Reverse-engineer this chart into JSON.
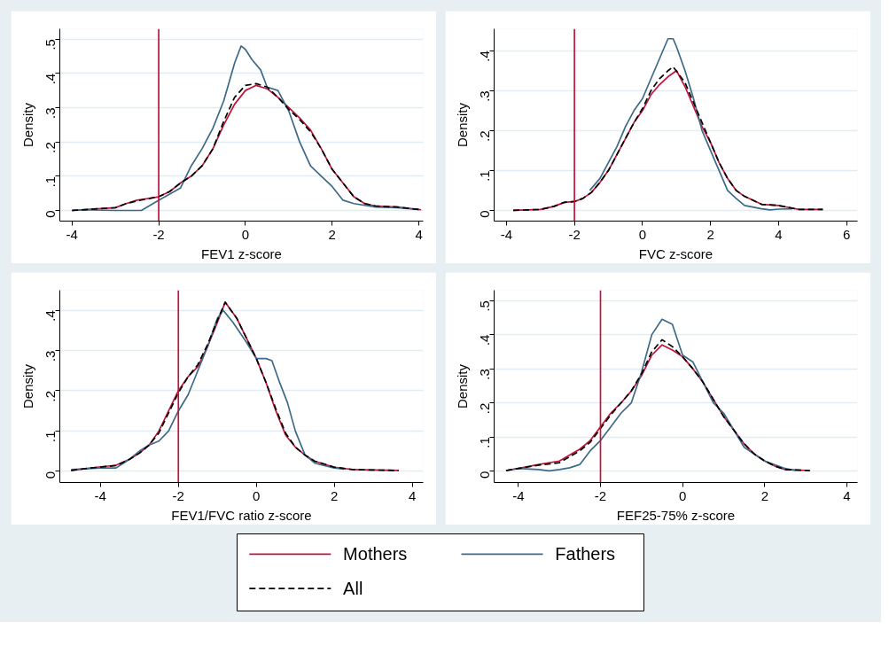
{
  "chart_data": [
    {
      "type": "line",
      "xlabel": "FEV1 z-score",
      "ylabel": "Density",
      "xlim": [
        -4.28,
        4.1
      ],
      "ylim": [
        -0.031,
        0.53
      ],
      "xticks": [
        -4,
        -2,
        0,
        2,
        4
      ],
      "yticks": [
        0,
        {
          "value": 0.1,
          "label": ".1"
        },
        {
          "value": 0.2,
          "label": ".2"
        },
        {
          "value": 0.3,
          "label": ".3"
        },
        {
          "value": 0.4,
          "label": ".4"
        },
        {
          "value": 0.5,
          "label": ".5"
        }
      ],
      "grid": "y",
      "ref_lines": [
        {
          "axis": "x",
          "value": -2,
          "color": "#c0143c"
        }
      ],
      "series": [
        {
          "color": "#c0143c",
          "line_style": "solid",
          "x": [
            -4,
            -3.5,
            -3,
            -2.75,
            -2.5,
            -2.25,
            -2,
            -1.75,
            -1.5,
            -1.25,
            -1,
            -0.75,
            -0.5,
            -0.25,
            0,
            0.25,
            0.5,
            0.75,
            1,
            1.25,
            1.5,
            1.75,
            2,
            2.25,
            2.5,
            2.75,
            3,
            3.5,
            4.05
          ],
          "values": [
            0.0,
            0.004,
            0.008,
            0.02,
            0.03,
            0.035,
            0.04,
            0.055,
            0.08,
            0.1,
            0.13,
            0.18,
            0.25,
            0.31,
            0.35,
            0.365,
            0.355,
            0.33,
            0.3,
            0.27,
            0.235,
            0.18,
            0.12,
            0.08,
            0.04,
            0.02,
            0.013,
            0.01,
            0.002
          ]
        },
        {
          "color": "#3e6a8a",
          "line_style": "solid",
          "x": [
            -4,
            -3.8,
            -3,
            -2.4,
            -2,
            -1.5,
            -1.25,
            -1,
            -0.75,
            -0.5,
            -0.25,
            -0.1,
            0,
            0.15,
            0.35,
            0.5,
            0.75,
            1,
            1.25,
            1.5,
            1.75,
            2,
            2.25,
            2.5,
            3,
            3.5,
            4
          ],
          "values": [
            0.0,
            0.002,
            0.0,
            0.0,
            0.03,
            0.065,
            0.13,
            0.18,
            0.24,
            0.32,
            0.43,
            0.48,
            0.47,
            0.44,
            0.41,
            0.36,
            0.35,
            0.29,
            0.2,
            0.13,
            0.1,
            0.07,
            0.03,
            0.02,
            0.01,
            0.008,
            0.003
          ]
        },
        {
          "color": "#000000",
          "line_style": "dashed",
          "x": [
            -4,
            -3.5,
            -3,
            -2.75,
            -2.5,
            -2.25,
            -2,
            -1.75,
            -1.5,
            -1.25,
            -1,
            -0.75,
            -0.5,
            -0.25,
            0,
            0.25,
            0.5,
            0.75,
            1,
            1.25,
            1.5,
            1.75,
            2,
            2.25,
            2.5,
            2.75,
            3,
            3.5,
            4.05
          ],
          "values": [
            0.0,
            0.004,
            0.008,
            0.02,
            0.028,
            0.034,
            0.04,
            0.055,
            0.08,
            0.1,
            0.13,
            0.18,
            0.26,
            0.33,
            0.365,
            0.37,
            0.36,
            0.33,
            0.295,
            0.265,
            0.23,
            0.18,
            0.12,
            0.08,
            0.04,
            0.02,
            0.013,
            0.01,
            0.002
          ]
        }
      ]
    },
    {
      "type": "line",
      "xlabel": "FVC z-score",
      "ylabel": "Density",
      "xlim": [
        -4.36,
        6.32
      ],
      "ylim": [
        -0.027,
        0.455
      ],
      "xticks": [
        -4,
        -2,
        0,
        2,
        4,
        6
      ],
      "yticks": [
        0,
        {
          "value": 0.1,
          "label": ".1"
        },
        {
          "value": 0.2,
          "label": ".2"
        },
        {
          "value": 0.3,
          "label": ".3"
        },
        {
          "value": 0.4,
          "label": ".4"
        }
      ],
      "grid": "y",
      "ref_lines": [
        {
          "axis": "x",
          "value": -2,
          "color": "#c0143c"
        }
      ],
      "series": [
        {
          "color": "#c0143c",
          "line_style": "solid",
          "x": [
            -3.8,
            -3,
            -2.6,
            -2.3,
            -2,
            -1.75,
            -1.5,
            -1.25,
            -1,
            -0.75,
            -0.5,
            -0.25,
            0,
            0.25,
            0.5,
            0.75,
            1,
            1.25,
            1.5,
            1.75,
            2,
            2.25,
            2.5,
            2.75,
            3,
            3.25,
            3.5,
            4,
            4.25,
            4.6,
            5.3
          ],
          "values": [
            0.0,
            0.002,
            0.01,
            0.02,
            0.022,
            0.03,
            0.045,
            0.07,
            0.1,
            0.14,
            0.18,
            0.22,
            0.25,
            0.29,
            0.315,
            0.335,
            0.35,
            0.31,
            0.26,
            0.21,
            0.17,
            0.12,
            0.08,
            0.05,
            0.035,
            0.025,
            0.015,
            0.012,
            0.008,
            0.002,
            0.002
          ]
        },
        {
          "color": "#3e6a8a",
          "line_style": "solid",
          "x": [
            -1.55,
            -1.25,
            -1,
            -0.75,
            -0.5,
            -0.25,
            0,
            0.25,
            0.5,
            0.75,
            0.9,
            1,
            1.25,
            1.5,
            1.75,
            2,
            2.25,
            2.5,
            2.75,
            3,
            3.5,
            3.75,
            4,
            4.4
          ],
          "values": [
            0.05,
            0.08,
            0.12,
            0.16,
            0.21,
            0.25,
            0.28,
            0.33,
            0.38,
            0.43,
            0.43,
            0.41,
            0.35,
            0.28,
            0.2,
            0.15,
            0.1,
            0.05,
            0.03,
            0.012,
            0.004,
            0.001,
            0.003,
            0.004
          ]
        },
        {
          "color": "#000000",
          "line_style": "dashed",
          "x": [
            -3.8,
            -3,
            -2.6,
            -2.3,
            -2,
            -1.75,
            -1.5,
            -1.25,
            -1,
            -0.75,
            -0.5,
            -0.25,
            0,
            0.25,
            0.5,
            0.75,
            0.9,
            1.25,
            1.5,
            1.75,
            2,
            2.25,
            2.5,
            2.75,
            3,
            3.25,
            3.5,
            4,
            4.25,
            4.6,
            5.3
          ],
          "values": [
            0.0,
            0.002,
            0.01,
            0.02,
            0.022,
            0.03,
            0.045,
            0.07,
            0.1,
            0.14,
            0.18,
            0.22,
            0.255,
            0.3,
            0.33,
            0.35,
            0.36,
            0.32,
            0.27,
            0.22,
            0.17,
            0.12,
            0.08,
            0.05,
            0.035,
            0.025,
            0.015,
            0.012,
            0.008,
            0.002,
            0.002
          ]
        }
      ]
    },
    {
      "type": "line",
      "xlabel": "FEV1/FVC ratio z-score",
      "ylabel": "Density",
      "xlim": [
        -5.04,
        4.28
      ],
      "ylim": [
        -0.028,
        0.45
      ],
      "xticks": [
        -4,
        -2,
        0,
        2,
        4
      ],
      "yticks": [
        0,
        {
          "value": 0.1,
          "label": ".1"
        },
        {
          "value": 0.2,
          "label": ".2"
        },
        {
          "value": 0.3,
          "label": ".3"
        },
        {
          "value": 0.4,
          "label": ".4"
        }
      ],
      "grid": "y",
      "ref_lines": [
        {
          "axis": "x",
          "value": -2,
          "color": "#c0143c"
        }
      ],
      "series": [
        {
          "color": "#c0143c",
          "line_style": "solid",
          "x": [
            -4.75,
            -4.25,
            -3.6,
            -3.25,
            -3,
            -2.75,
            -2.5,
            -2.25,
            -2,
            -1.75,
            -1.5,
            -1.25,
            -1,
            -0.8,
            -0.5,
            -0.25,
            0,
            0.25,
            0.5,
            0.75,
            1,
            1.25,
            1.5,
            2,
            2.5,
            3,
            3.65
          ],
          "values": [
            0.002,
            0.008,
            0.015,
            0.03,
            0.045,
            0.065,
            0.1,
            0.15,
            0.2,
            0.235,
            0.26,
            0.31,
            0.37,
            0.42,
            0.38,
            0.33,
            0.28,
            0.22,
            0.15,
            0.09,
            0.06,
            0.04,
            0.025,
            0.01,
            0.004,
            0.003,
            0.002
          ]
        },
        {
          "color": "#3e6a8a",
          "line_style": "solid",
          "x": [
            -4.75,
            -4,
            -3.6,
            -3.25,
            -3,
            -2.75,
            -2.5,
            -2.25,
            -2,
            -1.75,
            -1.5,
            -1.25,
            -1,
            -0.85,
            -0.6,
            -0.25,
            0,
            0.25,
            0.4,
            0.6,
            0.8,
            1,
            1.25,
            1.5,
            2,
            2.25
          ],
          "values": [
            0.004,
            0.008,
            0.008,
            0.03,
            0.05,
            0.065,
            0.075,
            0.1,
            0.15,
            0.19,
            0.25,
            0.31,
            0.38,
            0.4,
            0.37,
            0.32,
            0.28,
            0.28,
            0.275,
            0.22,
            0.17,
            0.1,
            0.04,
            0.02,
            0.008,
            0.005
          ]
        },
        {
          "color": "#000000",
          "line_style": "dashed",
          "x": [
            -4.75,
            -4.25,
            -3.6,
            -3.25,
            -3,
            -2.75,
            -2.5,
            -2.25,
            -2,
            -1.75,
            -1.5,
            -1.25,
            -1,
            -0.8,
            -0.5,
            -0.25,
            0,
            0.25,
            0.5,
            0.75,
            1,
            1.25,
            1.5,
            2,
            2.5,
            3,
            3.65
          ],
          "values": [
            0.002,
            0.008,
            0.014,
            0.03,
            0.045,
            0.065,
            0.095,
            0.145,
            0.195,
            0.235,
            0.265,
            0.315,
            0.375,
            0.42,
            0.38,
            0.33,
            0.28,
            0.22,
            0.155,
            0.095,
            0.06,
            0.04,
            0.025,
            0.01,
            0.004,
            0.003,
            0.002
          ]
        }
      ]
    },
    {
      "type": "line",
      "xlabel": "FEF25-75% z-score",
      "ylabel": "Density",
      "xlim": [
        -4.59,
        4.26
      ],
      "ylim": [
        -0.033,
        0.53
      ],
      "xticks": [
        -4,
        -2,
        0,
        2,
        4
      ],
      "yticks": [
        0,
        {
          "value": 0.1,
          "label": ".1"
        },
        {
          "value": 0.2,
          "label": ".2"
        },
        {
          "value": 0.3,
          "label": ".3"
        },
        {
          "value": 0.4,
          "label": ".4"
        },
        {
          "value": 0.5,
          "label": ".5"
        }
      ],
      "grid": "y",
      "legend": "bottom",
      "ref_lines": [
        {
          "axis": "x",
          "value": -2,
          "color": "#c0143c"
        }
      ],
      "series": [
        {
          "name": "Mothers",
          "color": "#c0143c",
          "line_style": "solid",
          "x": [
            -4.3,
            -4,
            -3.5,
            -3,
            -2.5,
            -2.25,
            -2,
            -1.75,
            -1.5,
            -1.25,
            -1,
            -0.75,
            -0.5,
            -0.25,
            0,
            0.25,
            0.5,
            0.75,
            1,
            1.25,
            1.5,
            1.75,
            2,
            2.25,
            2.5,
            3.1
          ],
          "values": [
            0.002,
            0.008,
            0.02,
            0.03,
            0.065,
            0.09,
            0.13,
            0.17,
            0.2,
            0.235,
            0.28,
            0.34,
            0.37,
            0.355,
            0.335,
            0.3,
            0.26,
            0.21,
            0.16,
            0.12,
            0.08,
            0.05,
            0.03,
            0.015,
            0.005,
            0.002
          ]
        },
        {
          "name": "Fathers",
          "color": "#3e6a8a",
          "line_style": "solid",
          "x": [
            -4.3,
            -4,
            -3.5,
            -3.25,
            -3,
            -2.75,
            -2.5,
            -2.25,
            -2,
            -1.75,
            -1.5,
            -1.25,
            -1,
            -0.75,
            -0.5,
            -0.25,
            0,
            0.25,
            0.5,
            0.75,
            1,
            1.25,
            1.5,
            1.75,
            2,
            2.5,
            2.75
          ],
          "values": [
            0.002,
            0.008,
            0.005,
            0.001,
            0.005,
            0.01,
            0.02,
            0.06,
            0.09,
            0.13,
            0.17,
            0.2,
            0.29,
            0.4,
            0.445,
            0.43,
            0.34,
            0.32,
            0.26,
            0.2,
            0.17,
            0.12,
            0.07,
            0.05,
            0.03,
            0.008,
            0.002
          ]
        },
        {
          "name": "All",
          "color": "#000000",
          "line_style": "dashed",
          "x": [
            -4.3,
            -4,
            -3.5,
            -3,
            -2.5,
            -2.25,
            -2,
            -1.75,
            -1.5,
            -1.25,
            -1,
            -0.75,
            -0.5,
            -0.25,
            0,
            0.25,
            0.5,
            0.75,
            1,
            1.25,
            1.5,
            1.75,
            2,
            2.25,
            2.5,
            3.1
          ],
          "values": [
            0.002,
            0.008,
            0.018,
            0.025,
            0.06,
            0.085,
            0.125,
            0.165,
            0.2,
            0.235,
            0.285,
            0.35,
            0.385,
            0.365,
            0.335,
            0.3,
            0.26,
            0.21,
            0.16,
            0.12,
            0.08,
            0.05,
            0.03,
            0.015,
            0.005,
            0.002
          ]
        }
      ]
    }
  ]
}
